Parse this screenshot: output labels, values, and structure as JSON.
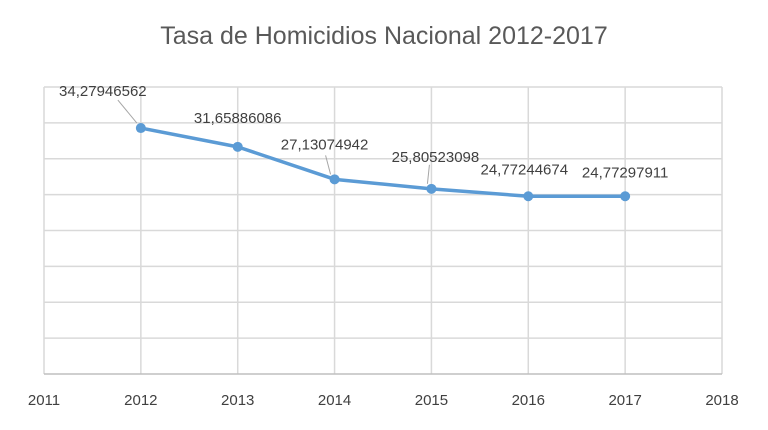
{
  "chart_data": {
    "type": "line",
    "title": "Tasa de Homicidios Nacional 2012-2017",
    "xlabel": "",
    "ylabel": "",
    "x": [
      2012,
      2013,
      2014,
      2015,
      2016,
      2017
    ],
    "values": [
      34.27946562,
      31.65886086,
      27.13074942,
      25.80523098,
      24.77244674,
      24.77297911
    ],
    "data_labels": [
      "34,27946562",
      "31,65886086",
      "27,13074942",
      "25,80523098",
      "24,77244674",
      "24,77297911"
    ],
    "x_ticks": [
      "2011",
      "2012",
      "2013",
      "2014",
      "2015",
      "2016",
      "2017",
      "2018"
    ],
    "xlim": [
      2011,
      2018
    ],
    "ylim": [
      0,
      40
    ],
    "y_grid_step": 5,
    "grid": true,
    "line_color": "#5B9BD5"
  }
}
